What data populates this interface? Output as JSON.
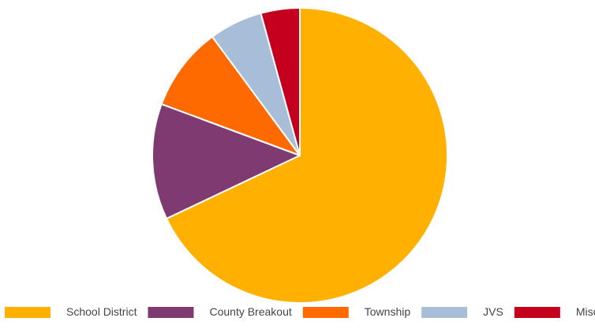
{
  "chart_data": {
    "type": "pie",
    "start_angle_deg": 0,
    "direction": "clockwise",
    "legend_position": "bottom",
    "slices": [
      {
        "label": "School District",
        "value": 68.5,
        "color": "#FFB000"
      },
      {
        "label": "County Breakout",
        "value": 12.8,
        "color": "#7F3B71"
      },
      {
        "label": "Township",
        "value": 9.3,
        "color": "#FF6A00"
      },
      {
        "label": "JVS",
        "value": 5.9,
        "color": "#A7BDD8"
      },
      {
        "label": "Misc +",
        "value": 4.3,
        "color": "#C4001E"
      }
    ]
  }
}
